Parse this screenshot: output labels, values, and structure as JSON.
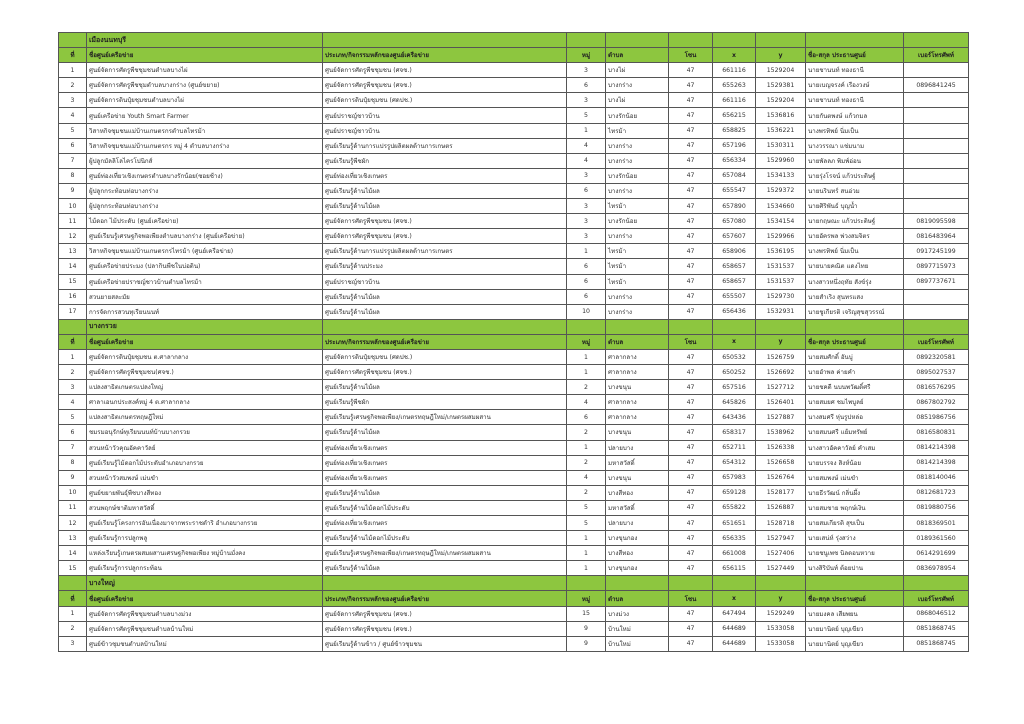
{
  "headers": [
    "ที่",
    "ชื่อศูนย์เครือข่าย",
    "ประเภท/กิจกรรมหลักของศูนย์เครือข่าย",
    "หมู่",
    "ตำบล",
    "โซน",
    "x",
    "y",
    "ชื่อ-สกุล ประธานศูนย์",
    "เบอร์โทรศัพท์"
  ],
  "colors": {
    "section_bg": "#8dc63f",
    "border": "#555555"
  },
  "sections": [
    {
      "title": "เมืองนนทบุรี",
      "rows": [
        [
          "1",
          "ศูนย์จัดการศัตรูพืชชุมชนตำบลบางไผ่",
          "ศูนย์จัดการศัตรูพืชชุมชน (ศจช.)",
          "3",
          "บางไผ่",
          "47",
          "661116",
          "1529204",
          "นายชานนท์ ทองธานี",
          ""
        ],
        [
          "2",
          "ศูนย์จัดการศัตรูพืชชุมตำบลบางกร่าง (ศูนย์ขยาย)",
          "ศูนย์จัดการศัตรูพืชชุมชน (ศจช.)",
          "6",
          "บางกร่าง",
          "47",
          "655263",
          "1529381",
          "นายเบญจรงค์ เรืองวงษ์",
          "0896841245"
        ],
        [
          "3",
          "ศูนย์จัดการดินปุ๋ยชุมชนตำบลบางไผ่",
          "ศูนย์จัดการดินปุ๋ยชุมชน (ศดปช.)",
          "3",
          "บางไผ่",
          "47",
          "661116",
          "1529204",
          "นายชานนท์ ทองธานี",
          ""
        ],
        [
          "4",
          "ศูนย์เครือข่าย Youth Smart Farmer",
          "ศูนย์ปราชญ์ชาวบ้าน",
          "5",
          "บางรักน้อย",
          "47",
          "656215",
          "1536816",
          "นายกันตพงษ์ แก้วกมล",
          ""
        ],
        [
          "5",
          "วิสาหกิจชุมชนแม่บ้านเกษตรกรตำบลไทรม้า",
          "ศูนย์ปราชญ์ชาวบ้าน",
          "1",
          "ไทรม้า",
          "47",
          "658825",
          "1536221",
          "นางพรทิพย์ นิ่มเป็น",
          ""
        ],
        [
          "6",
          "วิสาหกิจชุมชนแม่บ้านเกษตรกร หมู่ 4 ตำบลบางกร่าง",
          "ศูนย์เรียนรู้ด้านการแปรรูปผลิตผลด้านการเกษตร",
          "4",
          "บางกร่าง",
          "47",
          "657196",
          "1530311",
          "นางวรรณา แช่มนาม",
          ""
        ],
        [
          "7",
          "ผู้ปลูกมัลลิโลไครโปนิกส์",
          "ศูนย์เรียนรู้พืชผัก",
          "4",
          "บางกร่าง",
          "47",
          "656334",
          "1529960",
          "นายพัลลภ พิมพ์อ่อน",
          ""
        ],
        [
          "8",
          "ศูนย์ท่องเที่ยวเชิงเกษตรตำบลบางรักน้อย(ซอยช้าง)",
          "ศูนย์ท่องเที่ยวเชิงเกษตร",
          "3",
          "บางรักน้อย",
          "47",
          "657084",
          "1534133",
          "นายรุ่งโรจน์ แก้วประดิษฐ์",
          ""
        ],
        [
          "9",
          "ผู้ปลูกกระท้อนท่อบางกร่าง",
          "ศูนย์เรียนรู้ด้านไม้ผล",
          "6",
          "บางกร่าง",
          "47",
          "655547",
          "1529372",
          "นายนรินทร์ สนอ่วม",
          ""
        ],
        [
          "10",
          "ผู้ปลูกกระท้อนท่อบางกร่าง",
          "ศูนย์เรียนรู้ด้านไม้ผล",
          "3",
          "ไทรม้า",
          "47",
          "657890",
          "1534660",
          "นายศิริพันธ์ บุญน้ำ",
          ""
        ],
        [
          "11",
          "ไม้ดอก ไม้ประดับ (ศูนย์เครือข่าย)",
          "ศูนย์จัดการศัตรูพืชชุมชน (ศจช.)",
          "3",
          "บางรักน้อย",
          "47",
          "657080",
          "1534154",
          "นายกฤษณะ แก้วประดิษฐ์",
          "0819095598"
        ],
        [
          "12",
          "ศูนย์เรียนรู้เศรษฐกิจพอเพียงตำบลบางกร่าง (ศูนย์เครือข่าย)",
          "ศูนย์จัดการศัตรูพืชชุมชน (ศจช.)",
          "3",
          "บางกร่าง",
          "47",
          "657607",
          "1529966",
          "นายอัครพล พ่วงสมจิตร",
          "0816483964"
        ],
        [
          "13",
          "วิสาหกิจชุมชนแม่บ้านเกษตรกรไทรม้า (ศูนย์เครือข่าย)",
          "ศูนย์เรียนรู้ด้านการแปรรูปผลิตผลด้านการเกษตร",
          "1",
          "ไทรม้า",
          "47",
          "658906",
          "1536195",
          "นางพรทิพย์ นิ่มเป็น",
          "0917245199"
        ],
        [
          "14",
          "ศูนย์เครือข่ายประมง (ปลากินพืชในบ่อดิน)",
          "ศูนย์เรียนรู้ด้านประมง",
          "6",
          "ไทรม้า",
          "47",
          "658657",
          "1531537",
          "นายนายคณิต แดงไทย",
          "0897715973"
        ],
        [
          "15",
          "ศูนย์เครือข่ายปราชญ์ชาวบ้านตำบลไทรม้า",
          "ศูนย์ปราชญ์ชาวบ้าน",
          "6",
          "ไทรม้า",
          "47",
          "658657",
          "1531537",
          "นางสาวหนึ่งฤทัย สังข์รุ่ง",
          "0897737671"
        ],
        [
          "16",
          "สวนยายสละมัย",
          "ศูนย์เรียนรู้ด้านไม้ผล",
          "6",
          "บางกร่าง",
          "47",
          "655507",
          "1529730",
          "นายสำเริง สุนทรแสง",
          ""
        ],
        [
          "17",
          "การจัดการสวนทุเรียนนนท์",
          "ศูนย์เรียนรู้ด้านไม้ผล",
          "10",
          "บางกร่าง",
          "47",
          "656436",
          "1532931",
          "นายชูเกียรติ เจริญสุขสุวรรณ์",
          ""
        ]
      ]
    },
    {
      "title": "บางกรวย",
      "rows": [
        [
          "1",
          "ศูนย์จัดการดินปุ๋ยชุมชน ต.ศาลากลาง",
          "ศูนย์จัดการดินปุ๋ยชุมชน (ศดปช.)",
          "1",
          "ศาลากลาง",
          "47",
          "650532",
          "1526759",
          "นายสมศักดิ์ อันบู่",
          "0892320581"
        ],
        [
          "2",
          "ศูนย์จัดการศัตรูพืชชุมชน(ศจช.)",
          "ศูนย์จัดการศัตรูพืชชุมชน (ศจช.)",
          "1",
          "ศาลากลาง",
          "47",
          "650252",
          "1526692",
          "นายอำพล ค่ายคำ",
          "0895027537"
        ],
        [
          "3",
          "แปลงสาธิตเกษตรแปลงใหญ่",
          "ศูนย์เรียนรู้ด้านไม้ผล",
          "2",
          "บางขนุน",
          "47",
          "657516",
          "1527712",
          "นายชคดี นบนพวัฒดิ์ศรี",
          "0816576295"
        ],
        [
          "4",
          "ศาลาเอนกประสงค์หมู่ 4 ต.ศาลากลาง",
          "ศูนย์เรียนรู้พืชผัก",
          "4",
          "ศาลากลาง",
          "47",
          "645826",
          "1526401",
          "นายสมยศ ชมไพบูลย์",
          "0867802792"
        ],
        [
          "5",
          "แปลงสาธิตเกษตรทฤษฎีใหม่",
          "ศูนย์เรียนรู้เศรษฐกิจพอเพียง/เกษตรทฤษฎีใหม่/เกษตรผสมผสาน",
          "6",
          "ศาลากลาง",
          "47",
          "643436",
          "1527887",
          "นางสมศรี หุ่นรูปหล่อ",
          "0851986756"
        ],
        [
          "6",
          "ชมรมอนุรักษ์ทุเรียนนนท์บ้านบางกรวย",
          "ศูนย์เรียนรู้ด้านไม้ผล",
          "2",
          "บางขนุน",
          "47",
          "658317",
          "1538962",
          "นายสมนศรี แย้มทรัพย์",
          "0816580831"
        ],
        [
          "7",
          "สวนหน้าวัวคุณอัคคาวัลย์",
          "ศูนย์ท่องเที่ยวเชิงเกษตร",
          "1",
          "ปลายบาง",
          "47",
          "652711",
          "1526338",
          "นางสาวอัคคาวัลย์ คำเสม",
          "0814214398"
        ],
        [
          "8",
          "ศูนย์เรียนรู้ไม้ดอกไม้ประดับอำเภอบางกรวย",
          "ศูนย์ท่องเที่ยวเชิงเกษตร",
          "2",
          "มหาสวัสดิ์",
          "47",
          "654312",
          "1526658",
          "นายบรรจง สิงห์น้อย",
          "0814214398"
        ],
        [
          "9",
          "สวนหน้าวัวสมพงษ์ เม่นขำ",
          "ศูนย์ท่องเที่ยวเชิงเกษตร",
          "4",
          "บางขนุน",
          "47",
          "657983",
          "1526764",
          "นายสมพงษ์ เม่นขำ",
          "0818140046"
        ],
        [
          "10",
          "ศูนย์ขยายพันธุ์พืชบางสีทอง",
          "ศูนย์เรียนรู้ด้านไม้ผล",
          "2",
          "บางสีทอง",
          "47",
          "659128",
          "1528177",
          "นายธีรวัฒน์ กลิ่นผึ้ง",
          "0812681723"
        ],
        [
          "11",
          "สวนพฤกษ์ชาติมหาสวัสดิ์",
          "ศูนย์เรียนรู้ด้านไม้ดอกไม้ประดับ",
          "5",
          "มหาสวัสดิ์",
          "47",
          "655822",
          "1526887",
          "นายสมชาย พฤกษ์เงิน",
          "0819880756"
        ],
        [
          "12",
          "ศูนย์เรียนรู้โครงการอันเนื่องมาจากพระราชดำริ อำเภอบางกรวย",
          "ศูนย์ท่องเที่ยวเชิงเกษตร",
          "5",
          "ปลายบาง",
          "47",
          "651651",
          "1528718",
          "นายสมเกียรติ สุขเป็น",
          "0818369501"
        ],
        [
          "13",
          "ศูนย์เรียนรู้การปลูกพลู",
          "ศูนย์เรียนรู้ด้านไม้ดอกไม้ประดับ",
          "1",
          "บางขุนกอง",
          "47",
          "656335",
          "1527947",
          "นายเสน่ห์ รุ่งสว่าง",
          "0189361560"
        ],
        [
          "14",
          "แหล่งเรียนรู้เกษตรผสมผสานเศรษฐกิจพอเพียง หมู่บ้านมั่งคง",
          "ศูนย์เรียนรู้เศรษฐกิจพอเพียง/เกษตรทฤษฎีใหม่/เกษตรผสมผสาน",
          "1",
          "บางสีทอง",
          "47",
          "661008",
          "1527406",
          "นายชนูเพช นิลดอนหวาย",
          "0614291699"
        ],
        [
          "15",
          "ศูนย์เรียนรู้การปลูกกระท้อน",
          "ศูนย์เรียนรู้ด้านไม้ผล",
          "1",
          "บางขุนกอง",
          "47",
          "656115",
          "1527449",
          "นางสิริบันท์ ต้อยปาน",
          "0836978954"
        ]
      ]
    },
    {
      "title": "บางใหญ่",
      "rows": [
        [
          "1",
          "ศูนย์จัดการศัตรูพืชชุมชนตำบลบางม่วง",
          "ศูนย์จัดการศัตรูพืชชุมชน (ศจช.)",
          "15",
          "บางม่วง",
          "47",
          "647494",
          "1529249",
          "นายมงคล เสียพยน",
          "0868046512"
        ],
        [
          "2",
          "ศูนย์จัดการศัตรูพืชชุมชนตำบลบ้านใหม่",
          "ศูนย์จัดการศัตรูพืชชุมชน (ศจช.)",
          "9",
          "บ้านใหม่",
          "47",
          "644689",
          "1533058",
          "นายมานิตย์ บุญเขียว",
          "0851868745"
        ],
        [
          "3",
          "ศูนย์ข้าวชุมชนตำบลบ้านใหม่",
          "ศูนย์เรียนรู้ด้านข้าว / ศูนย์ข้าวชุมชน",
          "9",
          "บ้านใหม่",
          "47",
          "644689",
          "1533058",
          "นายมานิตย์ บุญเขียว",
          "0851868745"
        ]
      ]
    }
  ]
}
